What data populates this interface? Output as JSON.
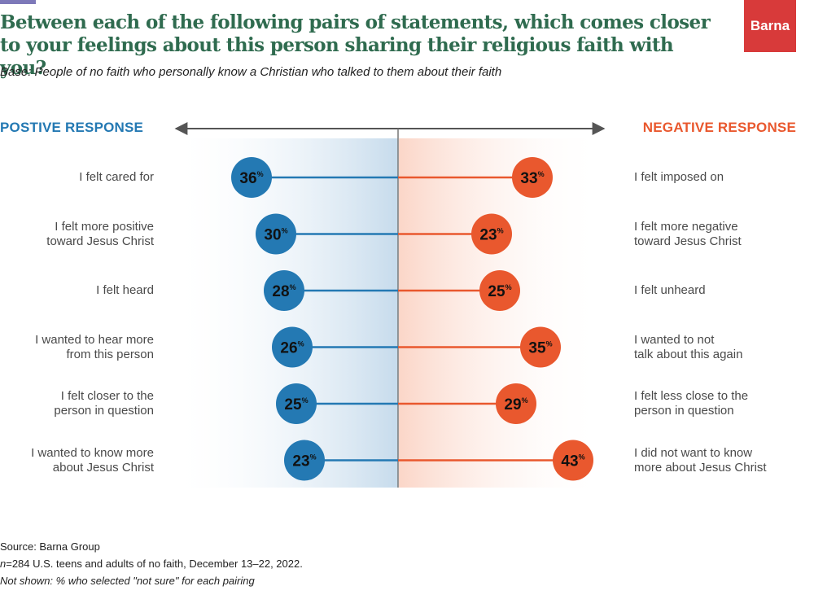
{
  "title": "Between each of the following pairs of statements, which comes closer to your feelings about this person sharing their religious faith with you?",
  "subtitle": "Base: People of no faith who personally know a Christian who talked to them about their faith",
  "brand": "Barna",
  "colors": {
    "positive": "#2479b3",
    "negative": "#e9582e",
    "title": "#2f6b4f",
    "brand": "#d83a3a"
  },
  "chart_data": {
    "type": "dot",
    "positive_header": "POSTIVE RESPONSE",
    "negative_header": "NEGATIVE RESPONSE",
    "rows": [
      {
        "positive_label": "I felt cared for",
        "positive_value": 36,
        "negative_label": "I felt imposed on",
        "negative_value": 33
      },
      {
        "positive_label": "I felt more positive\ntoward Jesus Christ",
        "positive_value": 30,
        "negative_label": "I felt more negative\ntoward Jesus Christ",
        "negative_value": 23
      },
      {
        "positive_label": "I felt heard",
        "positive_value": 28,
        "negative_label": "I felt unheard",
        "negative_value": 25
      },
      {
        "positive_label": "I wanted to hear more\nfrom this person",
        "positive_value": 26,
        "negative_label": "I wanted to not\ntalk about this again",
        "negative_value": 35
      },
      {
        "positive_label": "I felt closer to the\nperson in question",
        "positive_value": 25,
        "negative_label": "I felt less close to the\nperson in question",
        "negative_value": 29
      },
      {
        "positive_label": "I wanted to know more\nabout Jesus Christ",
        "positive_value": 23,
        "negative_label": "I did not want to know\nmore about Jesus Christ",
        "negative_value": 43
      }
    ],
    "value_suffix": "%"
  },
  "footer": {
    "source": "Source: Barna Group",
    "sample_n": "n",
    "sample": "=284 U.S. teens and adults of no faith, December 13–22, 2022.",
    "note": "Not shown: % who selected \"not sure\" for each pairing"
  }
}
